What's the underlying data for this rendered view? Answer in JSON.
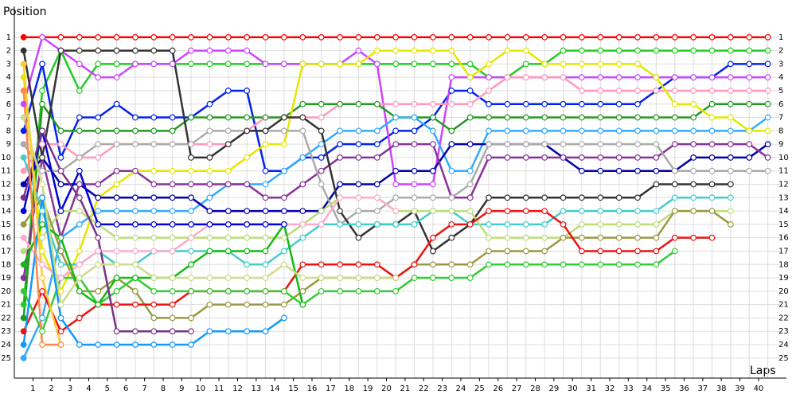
{
  "chart_data": {
    "type": "line",
    "y_label": "Position",
    "x_label": "Laps",
    "x": [
      0,
      1,
      2,
      3,
      4,
      5,
      6,
      7,
      8,
      9,
      10,
      11,
      12,
      13,
      14,
      15,
      16,
      17,
      18,
      19,
      20,
      21,
      22,
      23,
      24,
      25,
      26,
      27,
      28,
      29,
      30,
      31,
      32,
      33,
      34,
      35,
      36,
      37,
      38,
      39,
      40
    ],
    "xlim": [
      -0.5,
      41
    ],
    "ylim": [
      26.5,
      0
    ],
    "xticks": [
      1,
      2,
      3,
      4,
      5,
      6,
      7,
      8,
      9,
      10,
      11,
      12,
      13,
      14,
      15,
      16,
      17,
      18,
      19,
      20,
      21,
      22,
      23,
      24,
      25,
      26,
      27,
      28,
      29,
      30,
      31,
      32,
      33,
      34,
      35,
      36,
      37,
      38,
      39,
      40
    ],
    "yticks": [
      1,
      2,
      3,
      4,
      5,
      6,
      7,
      8,
      9,
      10,
      11,
      12,
      13,
      14,
      15,
      16,
      17,
      18,
      19,
      20,
      21,
      22,
      23,
      24,
      25
    ],
    "grid": true,
    "series": [
      {
        "color": "#ff0000",
        "values": [
          1,
          1,
          1,
          1,
          1,
          1,
          1,
          1,
          1,
          1,
          1,
          1,
          1,
          1,
          1,
          1,
          1,
          1,
          1,
          1,
          1,
          1,
          1,
          1,
          1,
          1,
          1,
          1,
          1,
          1,
          1,
          1,
          1,
          1,
          1,
          1,
          1,
          1,
          1,
          1,
          1
        ]
      },
      {
        "color": "#22cc22",
        "values": [
          21,
          5,
          2,
          5,
          3,
          3,
          3,
          3,
          3,
          3,
          3,
          3,
          3,
          3,
          3,
          3,
          3,
          3,
          3,
          3,
          3,
          3,
          3,
          3,
          3,
          4,
          4,
          3,
          3,
          2,
          2,
          2,
          2,
          2,
          2,
          2,
          2,
          2,
          2,
          2,
          2
        ]
      },
      {
        "color": "#0022ee",
        "values": [
          8,
          3,
          10,
          7,
          7,
          6,
          7,
          7,
          7,
          7,
          6,
          5,
          5,
          11,
          11,
          10,
          10,
          9,
          9,
          9,
          8,
          8,
          7,
          5,
          5,
          6,
          6,
          6,
          6,
          6,
          6,
          6,
          6,
          6,
          5,
          4,
          4,
          4,
          3,
          3,
          3
        ]
      },
      {
        "color": "#cc44ff",
        "values": [
          6,
          1,
          2,
          3,
          4,
          4,
          3,
          3,
          3,
          2,
          2,
          2,
          2,
          3,
          3,
          3,
          3,
          3,
          2,
          3,
          12,
          12,
          12,
          4,
          4,
          4,
          4,
          4,
          4,
          4,
          4,
          4,
          4,
          4,
          4,
          4,
          4,
          4,
          4,
          4,
          4
        ]
      },
      {
        "color": "#ff99bb",
        "values": [
          11,
          9,
          9,
          10,
          10,
          9,
          9,
          9,
          9,
          9,
          9,
          9,
          8,
          7,
          7,
          7,
          7,
          6,
          6,
          6,
          6,
          6,
          6,
          6,
          6,
          5,
          4,
          4,
          4,
          4,
          5,
          5,
          5,
          5,
          5,
          5,
          5,
          5,
          5,
          5,
          5
        ]
      },
      {
        "color": "#229922",
        "values": [
          22,
          6,
          8,
          8,
          8,
          8,
          8,
          8,
          8,
          7,
          7,
          7,
          7,
          7,
          7,
          6,
          6,
          6,
          6,
          6,
          7,
          7,
          7,
          8,
          7,
          7,
          7,
          7,
          7,
          7,
          7,
          7,
          7,
          7,
          7,
          7,
          7,
          6,
          6,
          6,
          6
        ]
      },
      {
        "color": "#33aaff",
        "values": [
          25,
          22,
          16,
          15,
          14,
          14,
          14,
          14,
          14,
          14,
          13,
          12,
          12,
          12,
          11,
          10,
          9,
          8,
          8,
          8,
          7,
          7,
          8,
          11,
          11,
          8,
          8,
          8,
          8,
          8,
          8,
          8,
          8,
          8,
          8,
          8,
          8,
          8,
          8,
          8,
          7
        ]
      },
      {
        "color": "#e6e600",
        "values": [
          4,
          17,
          20,
          17,
          13,
          12,
          11,
          11,
          11,
          11,
          11,
          11,
          10,
          9,
          9,
          3,
          3,
          3,
          3,
          2,
          2,
          2,
          2,
          2,
          4,
          3,
          2,
          2,
          3,
          3,
          3,
          3,
          3,
          3,
          4,
          6,
          6,
          7,
          7,
          8,
          8
        ]
      },
      {
        "color": "#0000aa",
        "values": [
          12,
          10,
          12,
          12,
          13,
          13,
          13,
          13,
          13,
          13,
          14,
          14,
          14,
          14,
          14,
          14,
          14,
          12,
          12,
          12,
          11,
          11,
          11,
          9,
          9,
          9,
          9,
          9,
          9,
          10,
          11,
          11,
          11,
          11,
          11,
          11,
          10,
          10,
          10,
          10,
          9
        ]
      },
      {
        "color": "#883399",
        "values": [
          19,
          10,
          16,
          12,
          12,
          11,
          11,
          12,
          12,
          12,
          12,
          12,
          12,
          13,
          13,
          12,
          11,
          10,
          10,
          10,
          9,
          9,
          9,
          13,
          13,
          10,
          10,
          10,
          10,
          10,
          10,
          10,
          10,
          10,
          10,
          9,
          9,
          9,
          9,
          9,
          10
        ]
      },
      {
        "color": "#aaaaaa",
        "values": [
          9,
          11,
          11,
          10,
          9,
          9,
          9,
          9,
          9,
          9,
          8,
          8,
          8,
          8,
          8,
          8,
          12,
          15,
          14,
          14,
          13,
          13,
          13,
          13,
          12,
          9,
          9,
          9,
          9,
          9,
          9,
          9,
          9,
          9,
          9,
          11,
          11,
          11,
          11,
          11,
          11
        ]
      },
      {
        "color": "#333333",
        "values": [
          2,
          10,
          2,
          2,
          2,
          2,
          2,
          2,
          2,
          10,
          10,
          9,
          8,
          8,
          7,
          7,
          8,
          14,
          16,
          15,
          15,
          14,
          17,
          16,
          15,
          13,
          13,
          13,
          13,
          13,
          13,
          13,
          13,
          13,
          12,
          12,
          12,
          12,
          12,
          null,
          null
        ]
      },
      {
        "color": "#44cccc",
        "values": [
          10,
          14,
          18,
          18,
          17,
          18,
          18,
          17,
          17,
          17,
          17,
          17,
          18,
          18,
          17,
          16,
          15,
          15,
          15,
          15,
          15,
          15,
          14,
          14,
          15,
          15,
          15,
          15,
          15,
          14,
          14,
          14,
          14,
          14,
          14,
          13,
          13,
          13,
          13,
          null,
          null
        ]
      },
      {
        "color": "#bbdd77",
        "values": [
          17,
          16,
          14,
          14,
          15,
          16,
          16,
          16,
          16,
          16,
          16,
          16,
          16,
          16,
          16,
          15,
          14,
          13,
          13,
          13,
          14,
          14,
          14,
          14,
          14,
          16,
          16,
          16,
          16,
          16,
          15,
          15,
          15,
          15,
          15,
          14,
          14,
          14,
          14,
          null,
          null
        ]
      },
      {
        "color": "#999944",
        "values": [
          15,
          13,
          17,
          20,
          20,
          19,
          20,
          22,
          22,
          22,
          21,
          21,
          21,
          21,
          21,
          20,
          19,
          19,
          19,
          19,
          19,
          18,
          18,
          18,
          18,
          17,
          17,
          17,
          17,
          16,
          16,
          16,
          16,
          16,
          16,
          14,
          14,
          14,
          15,
          null,
          null
        ]
      },
      {
        "color": "#ee1111",
        "values": [
          23,
          20,
          23,
          22,
          21,
          21,
          21,
          21,
          21,
          20,
          20,
          20,
          20,
          20,
          20,
          18,
          18,
          18,
          18,
          18,
          19,
          18,
          16,
          15,
          15,
          14,
          14,
          14,
          14,
          15,
          17,
          17,
          17,
          17,
          17,
          16,
          16,
          16,
          null,
          null,
          null
        ]
      },
      {
        "color": "#33cc33",
        "values": [
          20,
          23,
          19,
          19,
          21,
          20,
          19,
          20,
          20,
          20,
          20,
          20,
          20,
          20,
          20,
          21,
          20,
          20,
          20,
          20,
          20,
          19,
          19,
          19,
          19,
          18,
          18,
          18,
          18,
          18,
          18,
          18,
          18,
          18,
          18,
          17,
          null,
          null,
          null,
          null,
          null
        ]
      },
      {
        "color": "#ffaacc",
        "values": [
          16,
          18,
          19,
          18,
          17,
          17,
          17,
          17,
          17,
          16,
          15,
          15,
          15,
          15,
          15,
          15,
          15,
          13,
          13,
          13,
          14,
          null,
          null,
          null,
          null,
          null,
          null,
          null,
          null,
          null,
          null,
          null,
          null,
          null,
          null,
          null,
          null,
          null,
          null,
          null,
          null
        ]
      },
      {
        "color": "#11bb11",
        "values": [
          18,
          15,
          16,
          20,
          21,
          19,
          19,
          19,
          19,
          18,
          17,
          17,
          17,
          17,
          15,
          21,
          null,
          null,
          null,
          null,
          null,
          null,
          null,
          null,
          null,
          null,
          null,
          null,
          null,
          null,
          null,
          null,
          null,
          null,
          null,
          null,
          null,
          null,
          null,
          null,
          null
        ]
      },
      {
        "color": "#0000dd",
        "values": [
          14,
          8,
          14,
          11,
          15,
          15,
          15,
          15,
          15,
          15,
          15,
          15,
          15,
          15,
          15,
          null,
          null,
          null,
          null,
          null,
          null,
          null,
          null,
          null,
          null,
          null,
          null,
          null,
          null,
          null,
          null,
          null,
          null,
          null,
          null,
          null,
          null,
          null,
          null,
          null,
          null
        ]
      },
      {
        "color": "#1199ff",
        "values": [
          24,
          13,
          22,
          24,
          24,
          24,
          24,
          24,
          24,
          24,
          23,
          23,
          23,
          23,
          22,
          null,
          null,
          null,
          null,
          null,
          null,
          null,
          null,
          null,
          null,
          null,
          null,
          null,
          null,
          null,
          null,
          null,
          null,
          null,
          null,
          null,
          null,
          null,
          null,
          null,
          null
        ]
      },
      {
        "color": "#773388",
        "values": [
          13,
          8,
          11,
          13,
          16,
          23,
          23,
          23,
          23,
          23,
          null,
          null,
          null,
          null,
          null,
          null,
          null,
          null,
          null,
          null,
          null,
          null,
          null,
          null,
          null,
          null,
          null,
          null,
          null,
          null,
          null,
          null,
          null,
          null,
          null,
          null,
          null,
          null,
          null,
          null,
          null
        ]
      },
      {
        "color": "#ccdd88",
        "values": [
          7,
          12,
          21,
          19,
          18,
          18,
          18,
          19,
          19,
          19,
          19,
          19,
          19,
          19,
          18,
          19,
          19,
          19,
          19,
          19,
          19,
          null,
          null,
          null,
          null,
          null,
          null,
          null,
          null,
          null,
          null,
          null,
          null,
          null,
          null,
          null,
          null,
          null,
          null,
          null,
          null
        ]
      },
      {
        "color": "#ffcc33",
        "values": [
          3,
          19,
          24,
          null,
          null,
          null,
          null,
          null,
          null,
          null,
          null,
          null,
          null,
          null,
          null,
          null,
          null,
          null,
          null,
          null,
          null,
          null,
          null,
          null,
          null,
          null,
          null,
          null,
          null,
          null,
          null,
          null,
          null,
          null,
          null,
          null,
          null,
          null,
          null,
          null,
          null
        ]
      },
      {
        "color": "#ff8844",
        "values": [
          5,
          24,
          24,
          null,
          null,
          null,
          null,
          null,
          null,
          null,
          null,
          null,
          null,
          null,
          null,
          null,
          null,
          null,
          null,
          null,
          null,
          null,
          null,
          null,
          null,
          null,
          null,
          null,
          null,
          null,
          null,
          null,
          null,
          null,
          null,
          null,
          null,
          null,
          null,
          null,
          null
        ]
      }
    ]
  }
}
